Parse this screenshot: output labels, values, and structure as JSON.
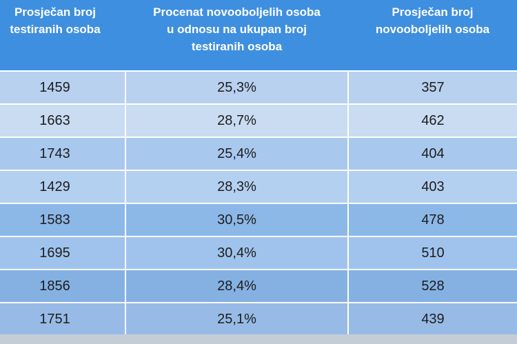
{
  "table": {
    "headers": [
      [
        "Prosječan broj",
        "testiranih osoba"
      ],
      [
        "Procenat novooboljelih osoba",
        "u odnosu na ukupan broj",
        "testiranih osoba"
      ],
      [
        "Prosječan broj",
        "novooboljelih osoba"
      ]
    ],
    "rows": [
      [
        "1459",
        "25,3%",
        "357"
      ],
      [
        "1663",
        "28,7%",
        "462"
      ],
      [
        "1743",
        "25,4%",
        "404"
      ],
      [
        "1429",
        "28,3%",
        "403"
      ],
      [
        "1583",
        "30,5%",
        "478"
      ],
      [
        "1695",
        "30,4%",
        "510"
      ],
      [
        "1856",
        "28,4%",
        "528"
      ],
      [
        "1751",
        "25,1%",
        "439"
      ]
    ]
  },
  "colors": {
    "header_bg": "#3f8fe0",
    "header_text": "#ffffff",
    "cell_text": "#1d1d1d"
  }
}
